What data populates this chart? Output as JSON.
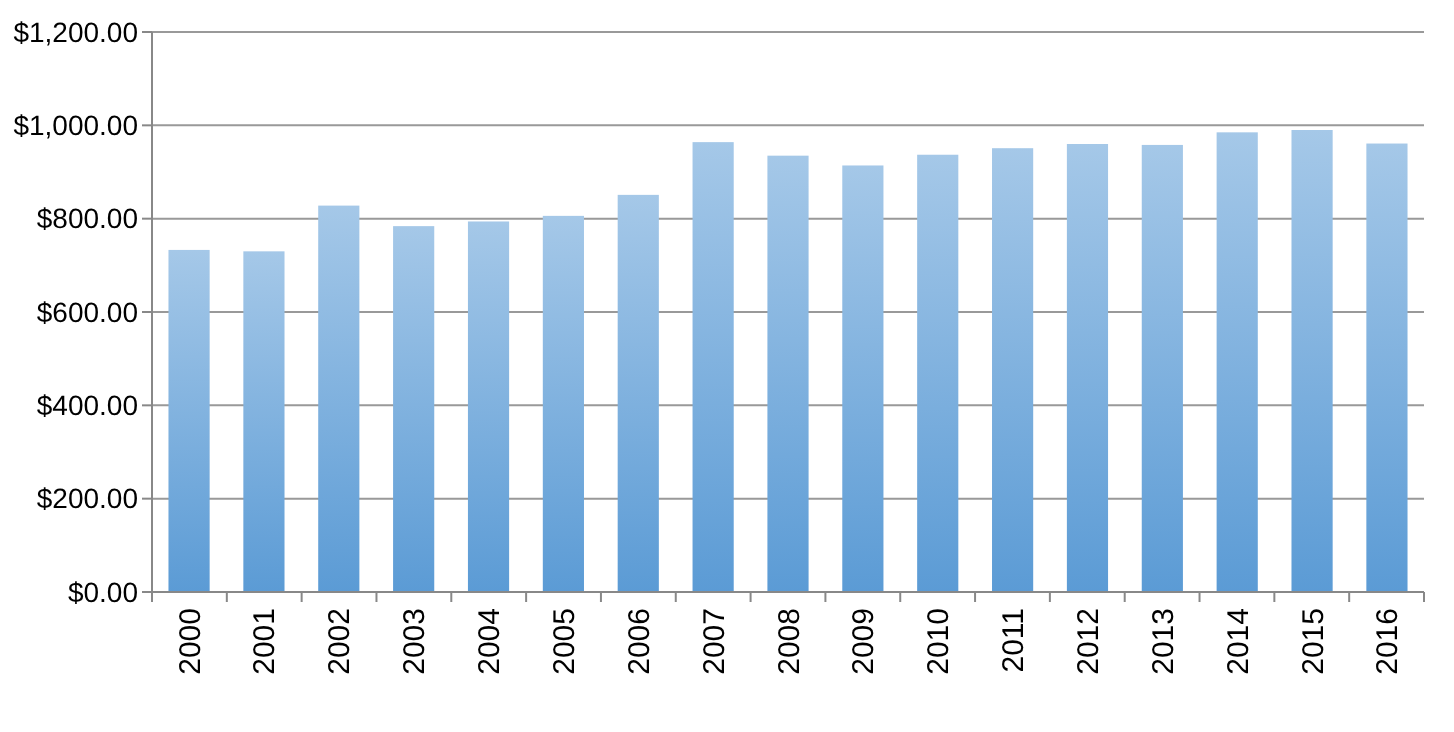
{
  "chart_data": {
    "type": "bar",
    "categories": [
      "2000",
      "2001",
      "2002",
      "2003",
      "2004",
      "2005",
      "2006",
      "2007",
      "2008",
      "2009",
      "2010",
      "2011",
      "2012",
      "2013",
      "2014",
      "2015",
      "2016"
    ],
    "values": [
      733,
      730,
      828,
      784,
      794,
      806,
      851,
      964,
      935,
      914,
      937,
      951,
      960,
      958,
      985,
      990,
      961
    ],
    "color": "#5b9bd5",
    "ylim": [
      0,
      1200
    ],
    "yticks": [
      {
        "value": 0,
        "label": "$0.00"
      },
      {
        "value": 200,
        "label": "$200.00"
      },
      {
        "value": 400,
        "label": "$400.00"
      },
      {
        "value": 600,
        "label": "$600.00"
      },
      {
        "value": 800,
        "label": "$800.00"
      },
      {
        "value": 1000,
        "label": "$1,000.00"
      },
      {
        "value": 1200,
        "label": "$1,200.00"
      }
    ],
    "grid": "y"
  }
}
